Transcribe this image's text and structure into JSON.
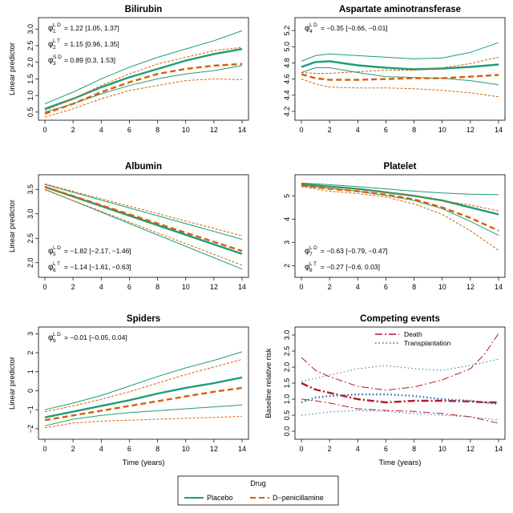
{
  "colors": {
    "placebo": "#1b9e77",
    "dpen": "#d95f02",
    "death": "#b2182b",
    "transplant": "#2b6cb0",
    "axis": "#333333"
  },
  "chart_data": [
    {
      "type": "line",
      "title": "Bilirubin",
      "xlabel": "",
      "ylabel": "Linear predictor",
      "xlim": [
        0,
        14
      ],
      "ylim": [
        0.4,
        3.2
      ],
      "xticks": [
        "0",
        "2",
        "4",
        "6",
        "8",
        "10",
        "12",
        "14"
      ],
      "yticks": [
        "0.5",
        "1.0",
        "1.5",
        "2.0",
        "2.5",
        "3.0"
      ],
      "annotations": [
        {
          "sym": "φ",
          "sub": "1",
          "sup": "L D",
          "text": "= 1.22 [1.05, 1.37]"
        },
        {
          "sym": "φ",
          "sub": "2",
          "sup": "L T",
          "text": "= 1.15 [0.96, 1.35]"
        },
        {
          "sym": "φ",
          "sub": "3",
          "sup": "S D",
          "text": "= 0.89 [0.3, 1.53]"
        }
      ],
      "x": [
        0,
        2,
        4,
        6,
        8,
        10,
        12,
        14
      ],
      "series": [
        {
          "group": "placebo",
          "role": "estimate",
          "values": [
            0.6,
            0.9,
            1.25,
            1.55,
            1.8,
            2.05,
            2.25,
            2.4
          ]
        },
        {
          "group": "placebo",
          "role": "upper",
          "values": [
            0.75,
            1.1,
            1.5,
            1.85,
            2.15,
            2.4,
            2.65,
            2.95
          ]
        },
        {
          "group": "placebo",
          "role": "lower",
          "values": [
            0.5,
            0.75,
            1.05,
            1.3,
            1.5,
            1.65,
            1.75,
            1.9
          ]
        },
        {
          "group": "dpen",
          "role": "estimate",
          "values": [
            0.45,
            0.75,
            1.1,
            1.4,
            1.65,
            1.8,
            1.9,
            1.95
          ]
        },
        {
          "group": "dpen",
          "role": "upper",
          "values": [
            0.55,
            0.9,
            1.3,
            1.65,
            1.95,
            2.15,
            2.35,
            2.45
          ]
        },
        {
          "group": "dpen",
          "role": "lower",
          "values": [
            0.35,
            0.6,
            0.9,
            1.15,
            1.3,
            1.45,
            1.5,
            1.48
          ]
        }
      ]
    },
    {
      "type": "line",
      "title": "Aspartate aminotransferase",
      "xlabel": "",
      "ylabel": "",
      "xlim": [
        0,
        14
      ],
      "ylim": [
        4.15,
        5.3
      ],
      "xticks": [
        "0",
        "2",
        "4",
        "6",
        "8",
        "10",
        "12",
        "14"
      ],
      "yticks": [
        "4.2",
        "4.4",
        "4.6",
        "4.8",
        "5.0",
        "5.2"
      ],
      "annotations": [
        {
          "sym": "φ",
          "sub": "4",
          "sup": "L D",
          "text": "= −0.35 [−0.66, −0.01]"
        }
      ],
      "x": [
        0,
        1,
        2,
        4,
        6,
        8,
        10,
        12,
        14
      ],
      "series": [
        {
          "group": "placebo",
          "role": "estimate",
          "values": [
            4.75,
            4.81,
            4.82,
            4.77,
            4.74,
            4.72,
            4.73,
            4.75,
            4.78
          ]
        },
        {
          "group": "placebo",
          "role": "upper",
          "values": [
            4.82,
            4.89,
            4.91,
            4.89,
            4.87,
            4.85,
            4.86,
            4.93,
            5.05
          ]
        },
        {
          "group": "placebo",
          "role": "lower",
          "values": [
            4.68,
            4.74,
            4.74,
            4.68,
            4.63,
            4.62,
            4.61,
            4.58,
            4.53
          ]
        },
        {
          "group": "dpen",
          "role": "estimate",
          "values": [
            4.66,
            4.61,
            4.59,
            4.59,
            4.6,
            4.61,
            4.61,
            4.63,
            4.65
          ]
        },
        {
          "group": "dpen",
          "role": "upper",
          "values": [
            4.68,
            4.67,
            4.67,
            4.69,
            4.71,
            4.71,
            4.74,
            4.79,
            4.87
          ]
        },
        {
          "group": "dpen",
          "role": "lower",
          "values": [
            4.6,
            4.54,
            4.5,
            4.49,
            4.49,
            4.48,
            4.46,
            4.43,
            4.38
          ]
        }
      ]
    },
    {
      "type": "line",
      "title": "Albumin",
      "xlabel": "",
      "ylabel": "Linear predictor",
      "xlim": [
        0,
        14
      ],
      "ylim": [
        1.8,
        3.7
      ],
      "xticks": [
        "0",
        "2",
        "4",
        "6",
        "8",
        "10",
        "12",
        "14"
      ],
      "yticks": [
        "2.0",
        "2.5",
        "3.0",
        "3.5"
      ],
      "annotations": [
        {
          "sym": "φ",
          "sub": "5",
          "sup": "L D",
          "text": "= −1.82 [−2.17, −1.46]"
        },
        {
          "sym": "φ",
          "sub": "6",
          "sup": "L T",
          "text": "= −1.14 [−1.61, −0.63]"
        }
      ],
      "x": [
        0,
        14
      ],
      "series": [
        {
          "group": "placebo",
          "role": "estimate",
          "values": [
            3.55,
            2.18
          ]
        },
        {
          "group": "placebo",
          "role": "upper",
          "values": [
            3.6,
            2.48
          ]
        },
        {
          "group": "placebo",
          "role": "lower",
          "values": [
            3.5,
            1.87
          ]
        },
        {
          "group": "dpen",
          "role": "estimate",
          "values": [
            3.55,
            2.24
          ]
        },
        {
          "group": "dpen",
          "role": "upper",
          "values": [
            3.61,
            2.55
          ]
        },
        {
          "group": "dpen",
          "role": "lower",
          "values": [
            3.49,
            1.95
          ]
        }
      ]
    },
    {
      "type": "line",
      "title": "Platelet",
      "xlabel": "",
      "ylabel": "",
      "xlim": [
        0,
        14
      ],
      "ylim": [
        1.7,
        5.7
      ],
      "xticks": [
        "0",
        "2",
        "4",
        "6",
        "8",
        "10",
        "12",
        "14"
      ],
      "yticks": [
        "2",
        "3",
        "4",
        "5"
      ],
      "annotations": [
        {
          "sym": "φ",
          "sub": "7",
          "sup": "L D",
          "text": "= −0.63 [−0.79, −0.47]"
        },
        {
          "sym": "φ",
          "sub": "8",
          "sup": "L T",
          "text": "= −0.27 [−0.6, 0.03]"
        }
      ],
      "x": [
        0,
        2,
        4,
        6,
        8,
        10,
        12,
        14
      ],
      "series": [
        {
          "group": "placebo",
          "role": "estimate",
          "values": [
            5.5,
            5.4,
            5.3,
            5.15,
            5.0,
            4.8,
            4.5,
            4.2
          ]
        },
        {
          "group": "placebo",
          "role": "upper",
          "values": [
            5.55,
            5.48,
            5.4,
            5.3,
            5.2,
            5.12,
            5.07,
            5.05
          ]
        },
        {
          "group": "placebo",
          "role": "lower",
          "values": [
            5.45,
            5.32,
            5.2,
            5.02,
            4.8,
            4.45,
            3.9,
            3.3
          ]
        },
        {
          "group": "dpen",
          "role": "estimate",
          "values": [
            5.45,
            5.3,
            5.2,
            5.05,
            4.85,
            4.5,
            4.05,
            3.5
          ]
        },
        {
          "group": "dpen",
          "role": "upper",
          "values": [
            5.5,
            5.38,
            5.3,
            5.15,
            5.0,
            4.8,
            4.6,
            4.35
          ]
        },
        {
          "group": "dpen",
          "role": "lower",
          "values": [
            5.4,
            5.2,
            5.1,
            4.95,
            4.65,
            4.2,
            3.5,
            2.65
          ]
        }
      ]
    },
    {
      "type": "line",
      "title": "Spiders",
      "xlabel": "Time (years)",
      "ylabel": "Linear predictor",
      "xlim": [
        0,
        14
      ],
      "ylim": [
        -2.3,
        3.1
      ],
      "xticks": [
        "0",
        "2",
        "4",
        "6",
        "8",
        "10",
        "12",
        "14"
      ],
      "yticks": [
        "−2",
        "−1",
        "0",
        "1",
        "2",
        "3"
      ],
      "annotations": [
        {
          "sym": "φ",
          "sub": "9",
          "sup": "L D",
          "text": "= −0.01 [−0.05, 0.04]"
        }
      ],
      "x": [
        0,
        2,
        4,
        6,
        8,
        10,
        12,
        14
      ],
      "series": [
        {
          "group": "placebo",
          "role": "estimate",
          "values": [
            -1.4,
            -1.1,
            -0.8,
            -0.5,
            -0.15,
            0.15,
            0.4,
            0.7
          ]
        },
        {
          "group": "placebo",
          "role": "upper",
          "values": [
            -1.0,
            -0.65,
            -0.25,
            0.25,
            0.75,
            1.2,
            1.6,
            2.05
          ]
        },
        {
          "group": "placebo",
          "role": "lower",
          "values": [
            -1.85,
            -1.5,
            -1.3,
            -1.15,
            -1.05,
            -0.95,
            -0.85,
            -0.75
          ]
        },
        {
          "group": "dpen",
          "role": "estimate",
          "values": [
            -1.55,
            -1.3,
            -1.05,
            -0.8,
            -0.55,
            -0.3,
            -0.05,
            0.15
          ]
        },
        {
          "group": "dpen",
          "role": "upper",
          "values": [
            -1.1,
            -0.8,
            -0.45,
            -0.05,
            0.4,
            0.85,
            1.25,
            1.65
          ]
        },
        {
          "group": "dpen",
          "role": "lower",
          "values": [
            -1.95,
            -1.7,
            -1.6,
            -1.55,
            -1.5,
            -1.45,
            -1.4,
            -1.35
          ]
        }
      ]
    },
    {
      "type": "line",
      "title": "Competing events",
      "xlabel": "Time (years)",
      "ylabel": "Baseline relative risk",
      "xlim": [
        0,
        14
      ],
      "ylim": [
        -0.1,
        3.1
      ],
      "xticks": [
        "0",
        "2",
        "4",
        "6",
        "8",
        "10",
        "12",
        "14"
      ],
      "yticks": [
        "0.0",
        "0.5",
        "1.0",
        "1.5",
        "2.0",
        "2.5",
        "3.0"
      ],
      "legend": {
        "position": "top-center",
        "entries": [
          {
            "key": "death",
            "label": "Death"
          },
          {
            "key": "transplant",
            "label": "Transplantation"
          }
        ]
      },
      "x": [
        0,
        1,
        2,
        4,
        6,
        8,
        10,
        12,
        13,
        14
      ],
      "series": [
        {
          "group": "death",
          "role": "estimate",
          "values": [
            1.5,
            1.3,
            1.2,
            1.0,
            0.9,
            0.95,
            0.95,
            0.93,
            0.9,
            0.9
          ]
        },
        {
          "group": "death",
          "role": "upper",
          "values": [
            2.3,
            1.9,
            1.7,
            1.4,
            1.28,
            1.38,
            1.6,
            1.95,
            2.4,
            3.05
          ]
        },
        {
          "group": "death",
          "role": "lower",
          "values": [
            1.0,
            0.95,
            0.88,
            0.7,
            0.65,
            0.62,
            0.55,
            0.45,
            0.35,
            0.25
          ]
        },
        {
          "group": "transplant",
          "role": "estimate",
          "values": [
            0.9,
            1.05,
            1.1,
            1.15,
            1.15,
            1.1,
            1.0,
            0.95,
            0.9,
            0.85
          ]
        },
        {
          "group": "transplant",
          "role": "upper",
          "values": [
            1.55,
            1.65,
            1.75,
            1.95,
            2.05,
            1.95,
            1.9,
            2.05,
            2.15,
            2.25
          ]
        },
        {
          "group": "transplant",
          "role": "lower",
          "values": [
            0.5,
            0.55,
            0.6,
            0.65,
            0.62,
            0.55,
            0.5,
            0.45,
            0.4,
            0.35
          ]
        }
      ]
    }
  ],
  "legend": {
    "title": "Drug",
    "items": [
      {
        "key": "placebo",
        "label": "Placebo"
      },
      {
        "key": "dpen",
        "label": "D−penicillamine"
      }
    ]
  }
}
